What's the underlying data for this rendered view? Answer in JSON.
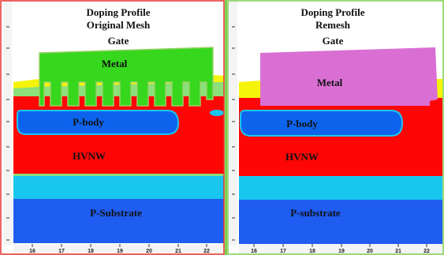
{
  "colors": {
    "substrate_blue": "#1f5cf0",
    "cyan": "#19c6ee",
    "red": "#ff0606",
    "pbody_blue": "#0d63ec",
    "metal_left": "#37d71d",
    "metal_right": "#d96fd3",
    "yellow": "#f6f30a",
    "frame_left": "#e4322e",
    "frame_right": "#7fcf4f"
  },
  "panels": [
    {
      "title_line1": "Doping Profile",
      "title_line2": "Original Mesh",
      "gate_label": "Gate",
      "metal_label": "Metal",
      "pbody_label": "P-body",
      "hvnw_label": "HVNW",
      "substrate_label": "P-Substrate"
    },
    {
      "title_line1": "Doping Profile",
      "title_line2": "Remesh",
      "gate_label": "Gate",
      "metal_label": "Metal",
      "pbody_label": "P-body",
      "hvnw_label": "HVNW",
      "substrate_label": "P-substrate"
    }
  ],
  "x_ticks": [
    "16",
    "17",
    "18",
    "19",
    "20",
    "21",
    "22"
  ]
}
